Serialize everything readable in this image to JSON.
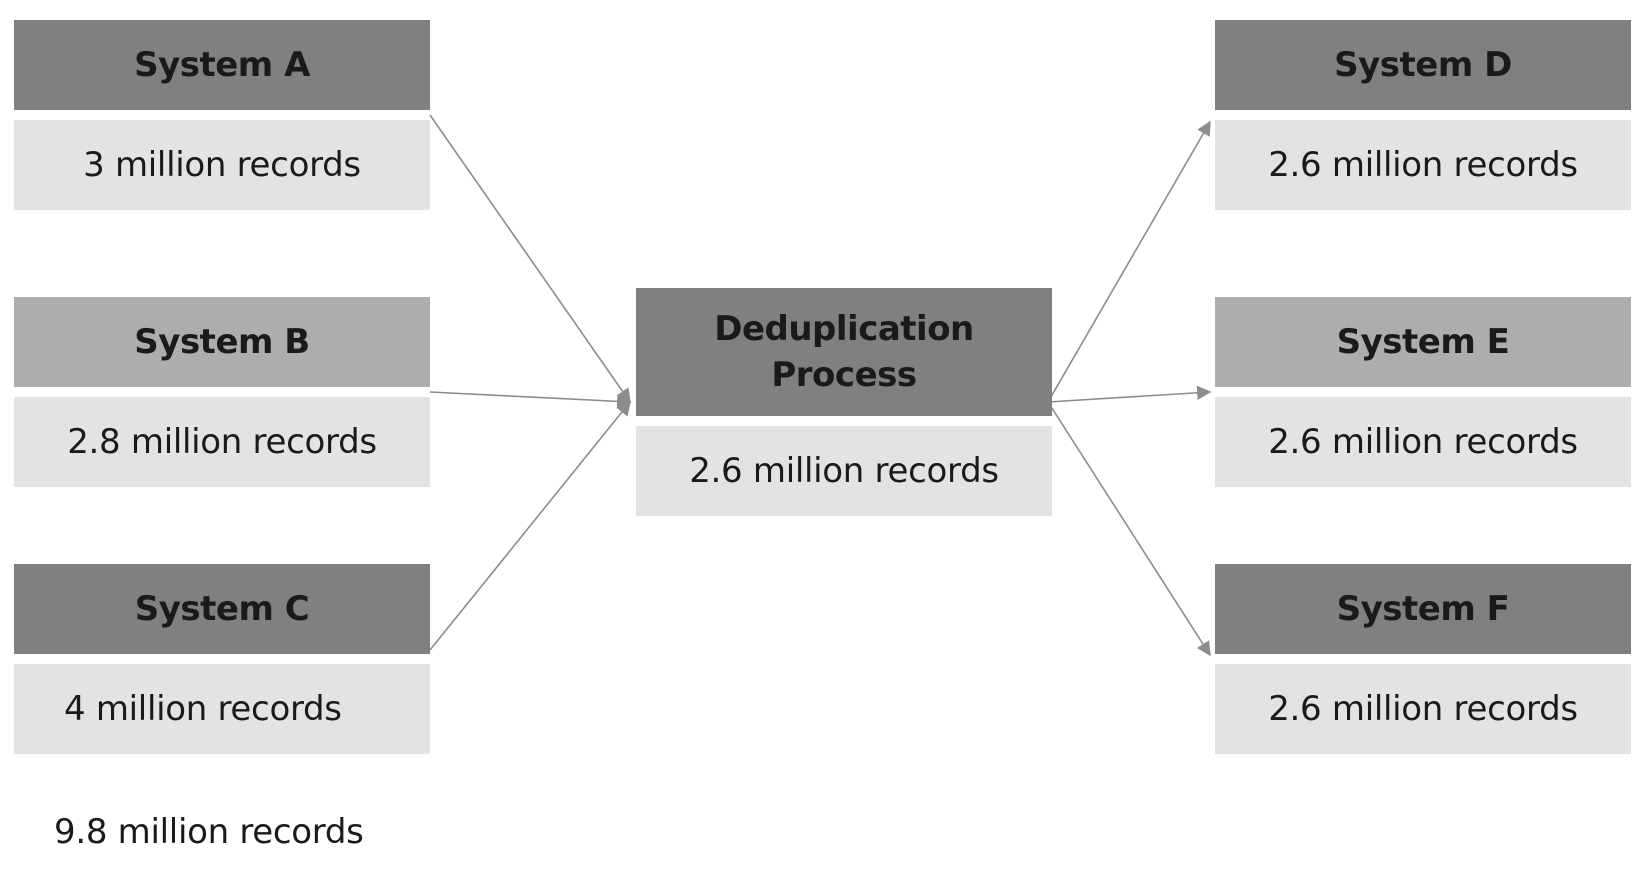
{
  "sources": [
    {
      "name": "System A",
      "records": "3 million records"
    },
    {
      "name": "System B",
      "records": "2.8 million records"
    },
    {
      "name": "System C",
      "records": "4 million records"
    }
  ],
  "process": {
    "name": "Deduplication Process",
    "records": "2.6 million records"
  },
  "targets": [
    {
      "name": "System D",
      "records": "2.6 million records"
    },
    {
      "name": "System E",
      "records": "2.6 million records"
    },
    {
      "name": "System F",
      "records": "2.6 million records"
    }
  ],
  "total_label": "9.8 million records",
  "colors": {
    "header_dark": "#808080",
    "header_light": "#adadad",
    "body": "#e3e3e3",
    "connector": "#8c8c8c"
  }
}
